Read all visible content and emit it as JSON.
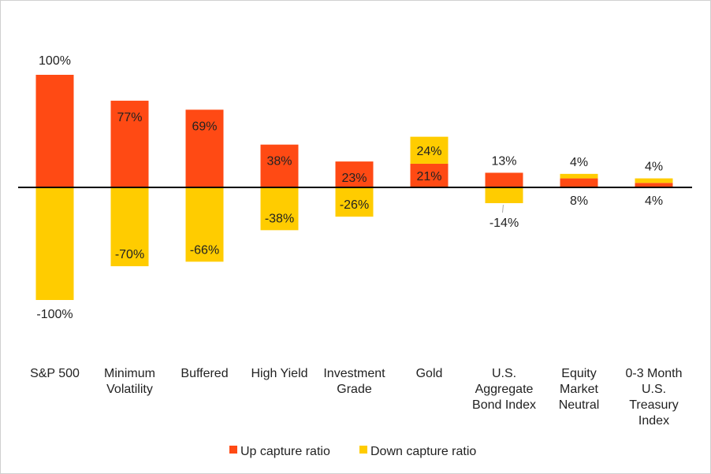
{
  "chart_data": {
    "type": "bar",
    "stacking": "stacked by sign",
    "categories": [
      [
        "S&P 500"
      ],
      [
        "Minimum",
        "Volatility"
      ],
      [
        "Buffered"
      ],
      [
        "High Yield"
      ],
      [
        "Investment",
        "Grade"
      ],
      [
        "Gold"
      ],
      [
        "U.S.",
        "Aggregate",
        "Bond Index"
      ],
      [
        "Equity",
        "Market",
        "Neutral"
      ],
      [
        "0-3 Month",
        "U.S.",
        "Treasury",
        "Index"
      ]
    ],
    "series": [
      {
        "name": "Up capture ratio",
        "color": "#FF4A14",
        "values": [
          100,
          77,
          69,
          38,
          23,
          21,
          13,
          8,
          4
        ]
      },
      {
        "name": "Down capture ratio",
        "color": "#FFCC00",
        "values": [
          -100,
          -70,
          -66,
          -38,
          -26,
          24,
          -14,
          4,
          4
        ]
      }
    ],
    "value_format": "percent",
    "ylim": [
      -100,
      100
    ],
    "grid": false,
    "legend": "bottom",
    "axis_color": "#000000"
  }
}
